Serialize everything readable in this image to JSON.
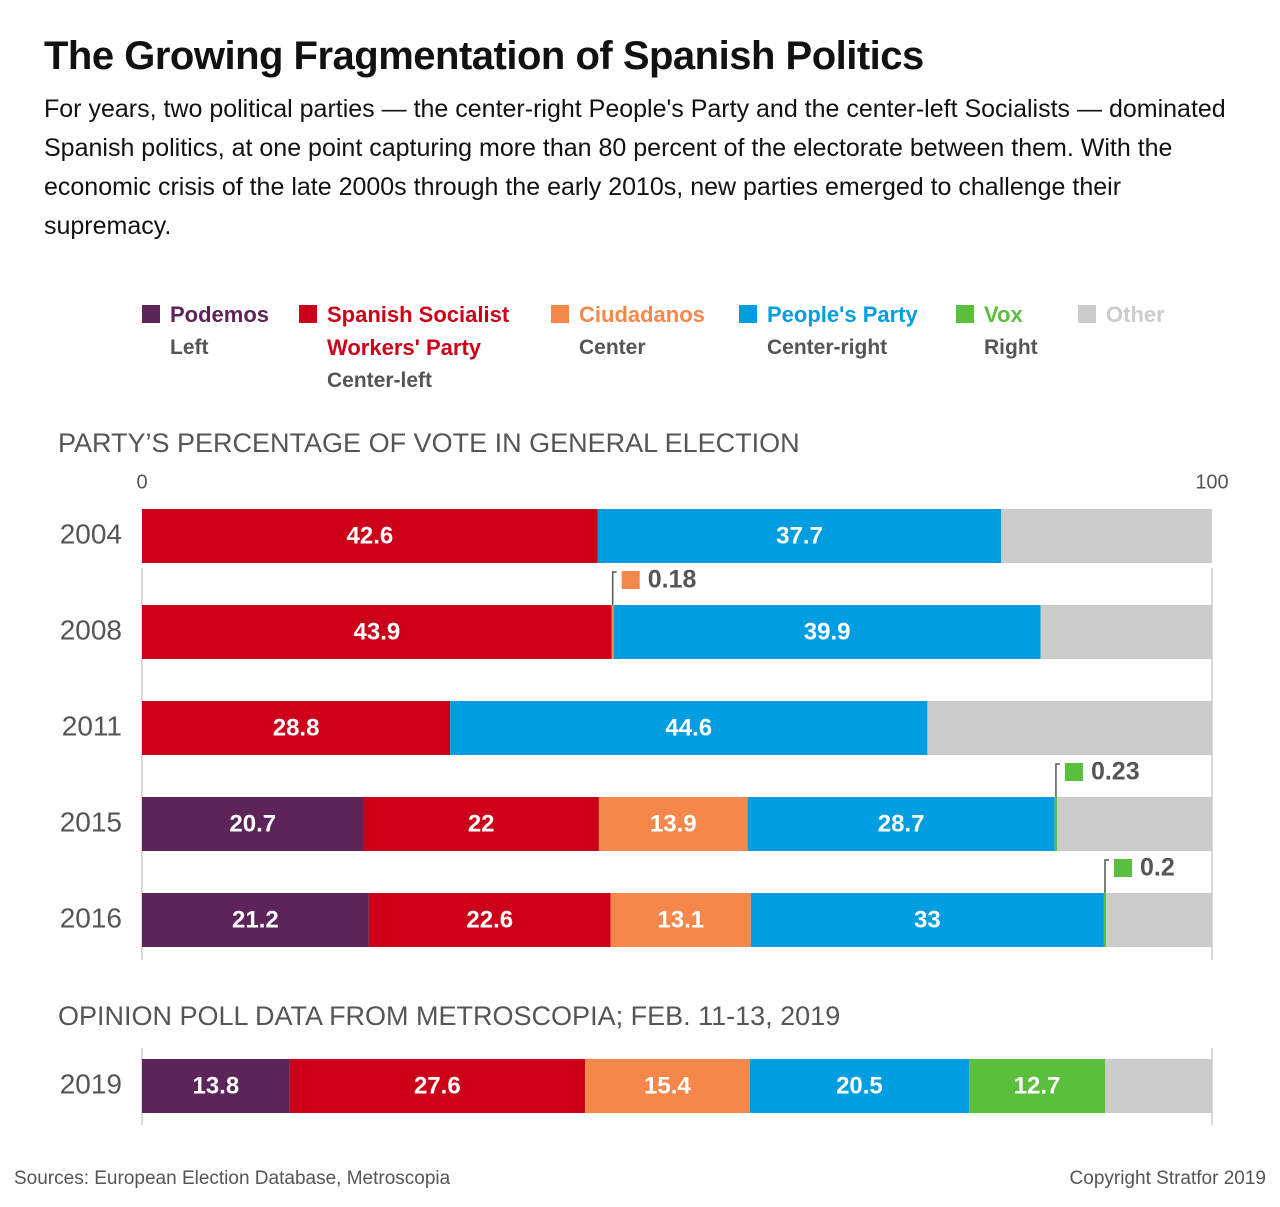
{
  "title": "The Growing Fragmentation of Spanish Politics",
  "subtitle": "For years, two political parties — the center-right People's Party and the center-left Socialists — dominated Spanish politics, at one point capturing more than 80 percent of the electorate between them. With the economic crisis of the late 2000s through the early 2010s, new parties emerged to challenge their supremacy.",
  "chart_data": [
    {
      "type": "stacked-bar-h",
      "title": "PARTY’S PERCENTAGE OF VOTE IN GENERAL ELECTION",
      "categories": [
        "2004",
        "2008",
        "2011",
        "2015",
        "2016"
      ],
      "xlim": [
        0,
        100
      ],
      "xticks": [
        0,
        100
      ],
      "series": [
        {
          "name": "Podemos",
          "group": "Left",
          "color": "#5c2458",
          "values": [
            null,
            null,
            null,
            20.7,
            21.2
          ]
        },
        {
          "name": "Spanish Socialist Workers' Party",
          "group": "Center-left",
          "color": "#cc0019",
          "values": [
            42.6,
            43.9,
            28.8,
            22,
            22.6
          ]
        },
        {
          "name": "Ciudadanos",
          "group": "Center",
          "color": "#f5874a",
          "values": [
            null,
            0.18,
            null,
            13.9,
            13.1
          ]
        },
        {
          "name": "People's Party",
          "group": "Center-right",
          "color": "#009ee0",
          "values": [
            37.7,
            39.9,
            44.6,
            28.7,
            33
          ]
        },
        {
          "name": "Vox",
          "group": "Right",
          "color": "#5abf3c",
          "values": [
            null,
            null,
            null,
            0.23,
            0.2
          ]
        },
        {
          "name": "Other",
          "color": "#cccccc",
          "data_labels": false,
          "values": [
            19.7,
            16,
            26.6,
            14.5,
            9.9
          ]
        }
      ]
    },
    {
      "type": "stacked-bar-h",
      "title": "OPINION POLL DATA FROM METROSCOPIA; FEB. 11-13, 2019",
      "categories": [
        "2019"
      ],
      "xlim": [
        0,
        100
      ],
      "series": [
        {
          "name": "Podemos",
          "color": "#5c2458",
          "values": [
            13.8
          ]
        },
        {
          "name": "Spanish Socialist Workers' Party",
          "color": "#cc0019",
          "values": [
            27.6
          ]
        },
        {
          "name": "Ciudadanos",
          "color": "#f5874a",
          "values": [
            15.4
          ]
        },
        {
          "name": "People's Party",
          "color": "#009ee0",
          "values": [
            20.5
          ]
        },
        {
          "name": "Vox",
          "color": "#5abf3c",
          "values": [
            12.7
          ]
        },
        {
          "name": "Other",
          "color": "#cccccc",
          "data_labels": false,
          "values": [
            10
          ]
        }
      ]
    }
  ],
  "source": "Sources: European Election Database, Metroscopia",
  "copyright": "Copyright Stratfor 2019"
}
